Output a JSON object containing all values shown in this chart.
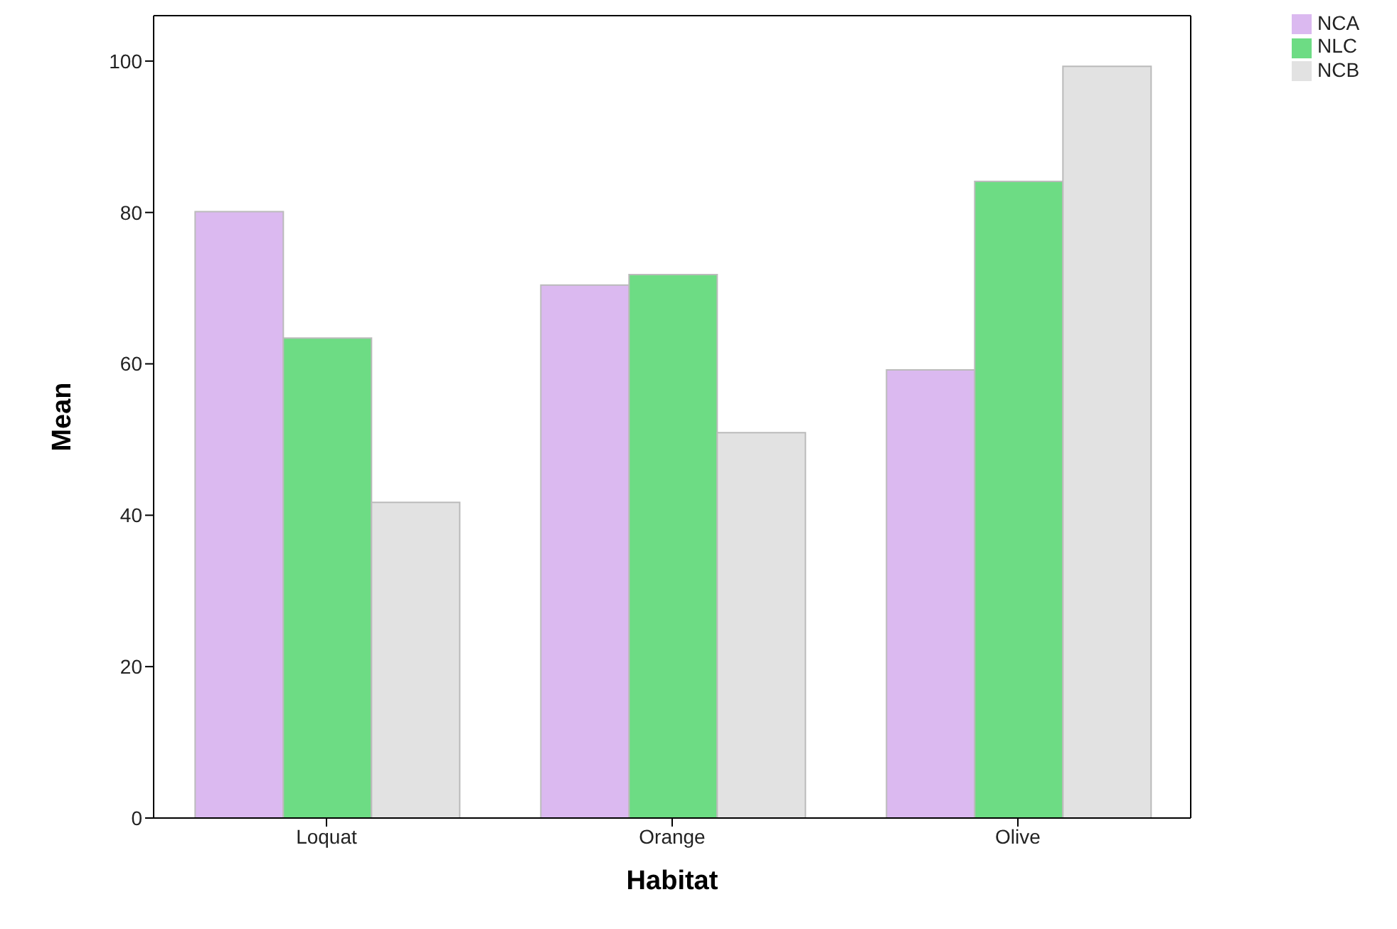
{
  "chart_data": {
    "type": "bar",
    "xlabel": "Habitat",
    "ylabel": "Mean",
    "categories": [
      "Loquat",
      "Orange",
      "Olive"
    ],
    "series": [
      {
        "name": "NCA",
        "color": "#dbb9f0",
        "values": [
          80.1,
          70.4,
          59.2
        ]
      },
      {
        "name": "NLC",
        "color": "#6ddc84",
        "values": [
          63.4,
          71.8,
          84.1
        ]
      },
      {
        "name": "NCB",
        "color": "#e2e2e2",
        "values": [
          41.7,
          50.9,
          99.3
        ]
      }
    ],
    "ylim": [
      0,
      106
    ],
    "yticks": [
      0,
      20,
      40,
      60,
      80,
      100
    ],
    "legend": "top right"
  }
}
